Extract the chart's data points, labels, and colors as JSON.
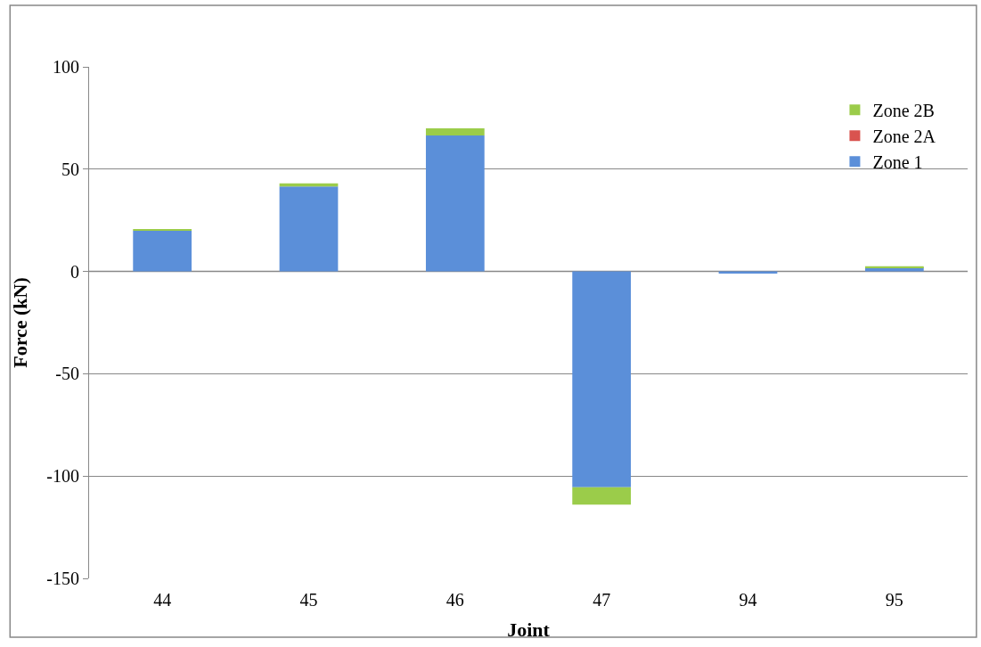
{
  "chart_data": {
    "type": "bar",
    "stacked": true,
    "xlabel": "Joint",
    "ylabel": "Force (kN)",
    "categories": [
      "44",
      "45",
      "46",
      "47",
      "94",
      "95"
    ],
    "series": [
      {
        "name": "Zone 1",
        "color": "#5b8fd9",
        "values": [
          20,
          41.5,
          66.5,
          -105.5,
          -1,
          2
        ]
      },
      {
        "name": "Zone 2A",
        "color": "#d9534f",
        "values": [
          0,
          0,
          0,
          0,
          0,
          0
        ]
      },
      {
        "name": "Zone 2B",
        "color": "#9bcc4a",
        "values": [
          0.5,
          1.5,
          3.5,
          -8.5,
          0,
          0.5
        ]
      }
    ],
    "ylim": [
      -150,
      100
    ],
    "yticks": [
      -150,
      -100,
      -50,
      0,
      50,
      100
    ],
    "grid": "y",
    "legend": "top right"
  }
}
